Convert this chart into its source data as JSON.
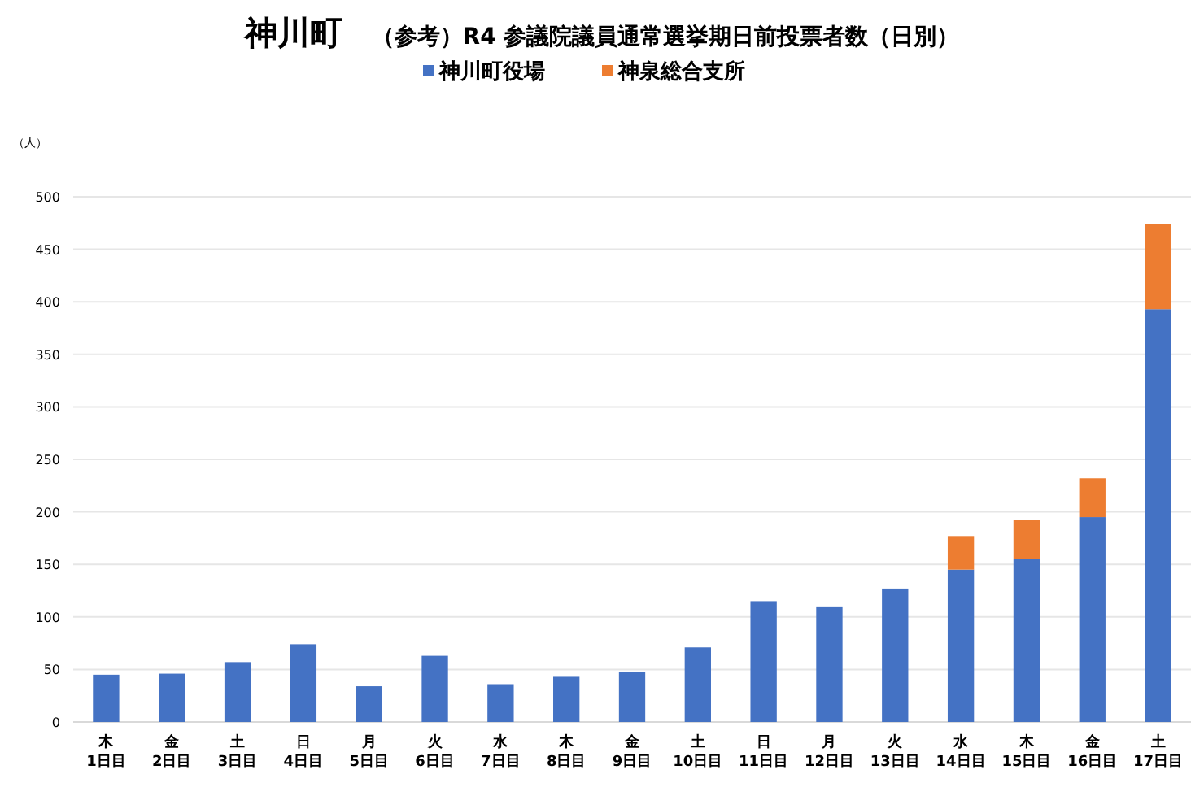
{
  "chart_data": {
    "type": "bar",
    "title": "神川町",
    "subtitle": "（参考）R4 参議院議員通常選挙期日前投票者数（日別）",
    "ylabel": "（人）",
    "categories": [
      "木\n1日目",
      "金\n2日目",
      "土\n3日目",
      "日\n4日目",
      "月\n5日目",
      "火\n6日目",
      "水\n7日目",
      "木\n8日目",
      "金\n9日目",
      "土\n10日目",
      "日\n11日目",
      "月\n12日目",
      "火\n13日目",
      "水\n14日目",
      "木\n15日目",
      "金\n16日目",
      "土\n17日目"
    ],
    "series": [
      {
        "name": "神川町役場",
        "color": "#4472c4",
        "values": [
          45,
          46,
          57,
          74,
          34,
          63,
          36,
          43,
          48,
          71,
          115,
          110,
          127,
          145,
          155,
          195,
          393
        ]
      },
      {
        "name": "神泉総合支所",
        "color": "#ed7d31",
        "values": [
          null,
          null,
          null,
          null,
          null,
          null,
          null,
          null,
          null,
          null,
          null,
          null,
          null,
          32,
          37,
          37,
          81
        ]
      }
    ],
    "stacked": true,
    "ylim": [
      0,
      500
    ],
    "yticks": [
      0,
      50,
      100,
      150,
      200,
      250,
      300,
      350,
      400,
      450,
      500
    ],
    "grid": "y",
    "legend": "top"
  }
}
